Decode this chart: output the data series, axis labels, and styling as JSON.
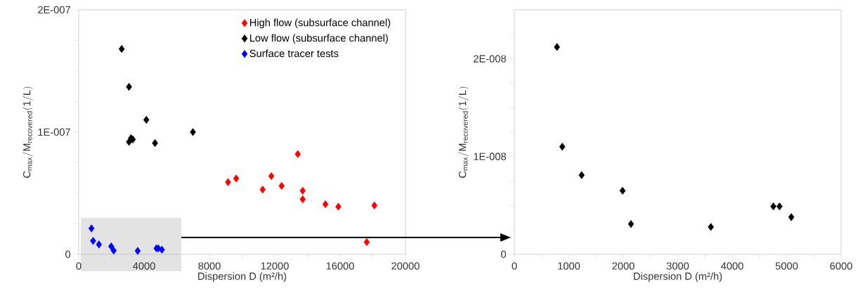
{
  "chart_data": [
    {
      "type": "scatter",
      "xlabel": "Dispersion D (m²/h)",
      "ylabel": "\\mathrm{C_{max}/M_{recovered}(1/L)}",
      "xlim": [
        0,
        20000
      ],
      "ylim": [
        0,
        2e-07
      ],
      "xticks": [
        0,
        {
          "value": 2000,
          "label": null
        },
        4000,
        {
          "value": 6000,
          "label": null
        },
        8000,
        {
          "value": 10000,
          "label": null
        },
        12000,
        {
          "value": 14000,
          "label": null
        },
        16000,
        {
          "value": 18000,
          "label": null
        },
        20000
      ],
      "yticks": [
        0,
        {
          "value": 2.5e-08,
          "label": null
        },
        {
          "value": 5e-08,
          "label": null
        },
        {
          "value": 7.5e-08,
          "label": null
        },
        {
          "value": 1e-07,
          "label": "1E-007"
        },
        {
          "value": 1.25e-07,
          "label": null
        },
        {
          "value": 1.5e-07,
          "label": null
        },
        {
          "value": 1.75e-07,
          "label": null
        },
        {
          "value": 2e-07,
          "label": "2E-007"
        }
      ],
      "marker": "diamond",
      "grid": false,
      "legend": "top right",
      "series": [
        {
          "name": "High flow (subsurface channel)",
          "color": "#ff0000",
          "x": [
            9140,
            9640,
            11260,
            11790,
            12420,
            13410,
            13710,
            13710,
            15100,
            15890,
            17630,
            18100
          ],
          "values": [
            5.9e-08,
            6.2e-08,
            5.3e-08,
            6.4e-08,
            5.6e-08,
            8.2e-08,
            5.2e-08,
            4.5e-08,
            4.1e-08,
            3.9e-08,
            1e-08,
            4e-08
          ]
        },
        {
          "name": "Low flow (subsurface channel)",
          "color": "#000000",
          "x": [
            2630,
            3080,
            4140,
            3080,
            3200,
            3310,
            4670,
            6990
          ],
          "values": [
            1.68e-07,
            1.37e-07,
            1.1e-07,
            9.2e-08,
            9.5e-08,
            9.4e-08,
            9.1e-08,
            1e-07
          ]
        },
        {
          "name": "Surface tracer tests",
          "color": "#0000ff",
          "x": [
            780,
            880,
            1240,
            1990,
            2140,
            3610,
            4760,
            4870,
            5090
          ],
          "values": [
            2.12e-08,
            1.1e-08,
            8.1e-09,
            6.5e-09,
            3.1e-09,
            2.8e-09,
            4.9e-09,
            4.9e-09,
            3.8e-09
          ]
        }
      ]
    },
    {
      "type": "scatter",
      "xlabel": "Dispersion D (m²/h)",
      "ylabel": "\\mathrm{C_{max}/M_{recovered}(1/L)}",
      "xlim": [
        0,
        6000
      ],
      "ylim": [
        0,
        2.5e-08
      ],
      "xticks": [
        0,
        {
          "value": 500,
          "label": null
        },
        1000,
        {
          "value": 1500,
          "label": null
        },
        2000,
        {
          "value": 2500,
          "label": null
        },
        3000,
        {
          "value": 3500,
          "label": null
        },
        4000,
        {
          "value": 4500,
          "label": null
        },
        5000,
        {
          "value": 5500,
          "label": null
        },
        6000
      ],
      "yticks": [
        0,
        {
          "value": 2.5e-09,
          "label": null
        },
        {
          "value": 5e-09,
          "label": null
        },
        {
          "value": 7.5e-09,
          "label": null
        },
        {
          "value": 1e-08,
          "label": "1E-008"
        },
        {
          "value": 1.25e-08,
          "label": null
        },
        {
          "value": 1.5e-08,
          "label": null
        },
        {
          "value": 1.75e-08,
          "label": null
        },
        {
          "value": 2e-08,
          "label": "2E-008"
        },
        {
          "value": 2.25e-08,
          "label": null
        }
      ],
      "marker": "diamond",
      "grid": false,
      "series": [
        {
          "color": "#000000",
          "x": [
            782,
            880,
            1235,
            1987,
            2141,
            3608,
            4756,
            4869,
            5085
          ],
          "values": [
            2.12e-08,
            1.1e-08,
            8.1e-09,
            6.5e-09,
            3.1e-09,
            2.8e-09,
            4.9e-09,
            4.9e-09,
            3.8e-09
          ]
        }
      ]
    }
  ]
}
